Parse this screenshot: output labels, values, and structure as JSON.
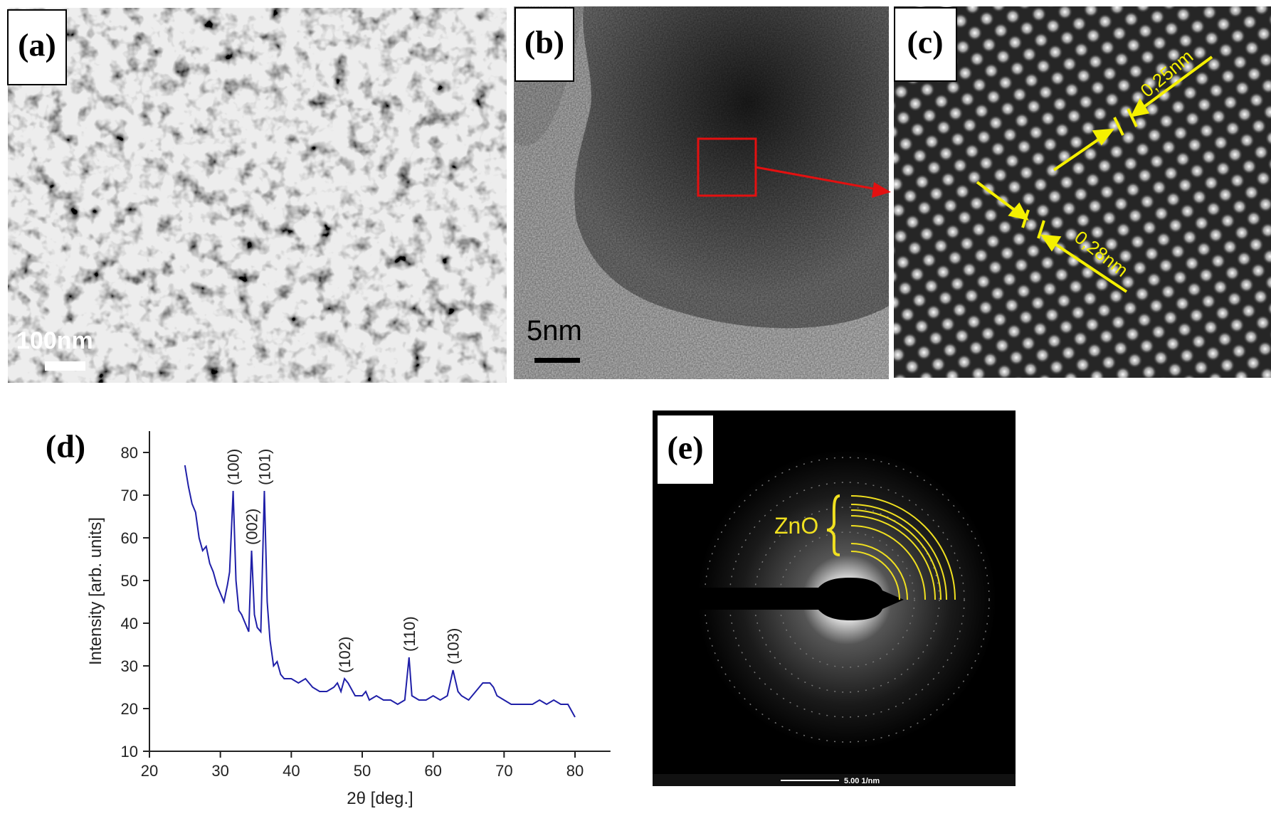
{
  "panels": [
    {
      "label": "(a)",
      "scale_bar": "100nm"
    },
    {
      "label": "(b)",
      "scale_bar": "5nm"
    },
    {
      "label": "(c)",
      "annotations": [
        "0,25nm",
        "0,28nm"
      ]
    },
    {
      "label": "(e)",
      "annotation": "ZnO",
      "scale_bar": "5.00 1/nm"
    }
  ],
  "chart_data": {
    "type": "line",
    "label": "(d)",
    "x_label": "2θ [deg.]",
    "y_label": "Intensity [arb. units]",
    "xlim": [
      20,
      85
    ],
    "ylim": [
      10,
      85
    ],
    "xticks": [
      20,
      30,
      40,
      50,
      60,
      70,
      80
    ],
    "yticks": [
      10,
      20,
      30,
      40,
      50,
      60,
      70,
      80
    ],
    "x": [
      25,
      25.5,
      26,
      26.5,
      27,
      27.5,
      28,
      28.5,
      29,
      29.5,
      30,
      30.5,
      31,
      31.3,
      31.8,
      32.2,
      32.6,
      33,
      33.5,
      34,
      34.4,
      34.8,
      35.2,
      35.7,
      36.2,
      36.6,
      37,
      37.5,
      38,
      38.5,
      39,
      40,
      41,
      42,
      43,
      44,
      45,
      46,
      46.5,
      47,
      47.5,
      48,
      49,
      50,
      50.5,
      51,
      52,
      53,
      54,
      55,
      56,
      56.6,
      57,
      58,
      59,
      60,
      61,
      62,
      62.8,
      63.5,
      64,
      65,
      66,
      67,
      68,
      68.5,
      69,
      70,
      71,
      72,
      73,
      74,
      75,
      76,
      77,
      78,
      79,
      80
    ],
    "series": [
      {
        "color": "#1f1fa8",
        "values": [
          77,
          72,
          68,
          66,
          60,
          57,
          58,
          54,
          52,
          49,
          47,
          45,
          49,
          52,
          71,
          50,
          43,
          42,
          40,
          38,
          57,
          42,
          39,
          38,
          71,
          45,
          36,
          30,
          31,
          28,
          27,
          27,
          26,
          27,
          25,
          24,
          24,
          25,
          26,
          24,
          27,
          26,
          23,
          23,
          24,
          22,
          23,
          22,
          22,
          21,
          22,
          32,
          23,
          22,
          22,
          23,
          22,
          23,
          29,
          24,
          23,
          22,
          24,
          26,
          26,
          25,
          23,
          22,
          21,
          21,
          21,
          21,
          22,
          21,
          22,
          21,
          21,
          18
        ]
      }
    ],
    "peaks": [
      {
        "label": "(100)",
        "x": 31.8,
        "y": 71
      },
      {
        "label": "(002)",
        "x": 34.4,
        "y": 57
      },
      {
        "label": "(101)",
        "x": 36.2,
        "y": 71
      },
      {
        "label": "(102)",
        "x": 47.5,
        "y": 27
      },
      {
        "label": "(110)",
        "x": 56.6,
        "y": 32
      },
      {
        "label": "(103)",
        "x": 62.8,
        "y": 29
      }
    ]
  }
}
